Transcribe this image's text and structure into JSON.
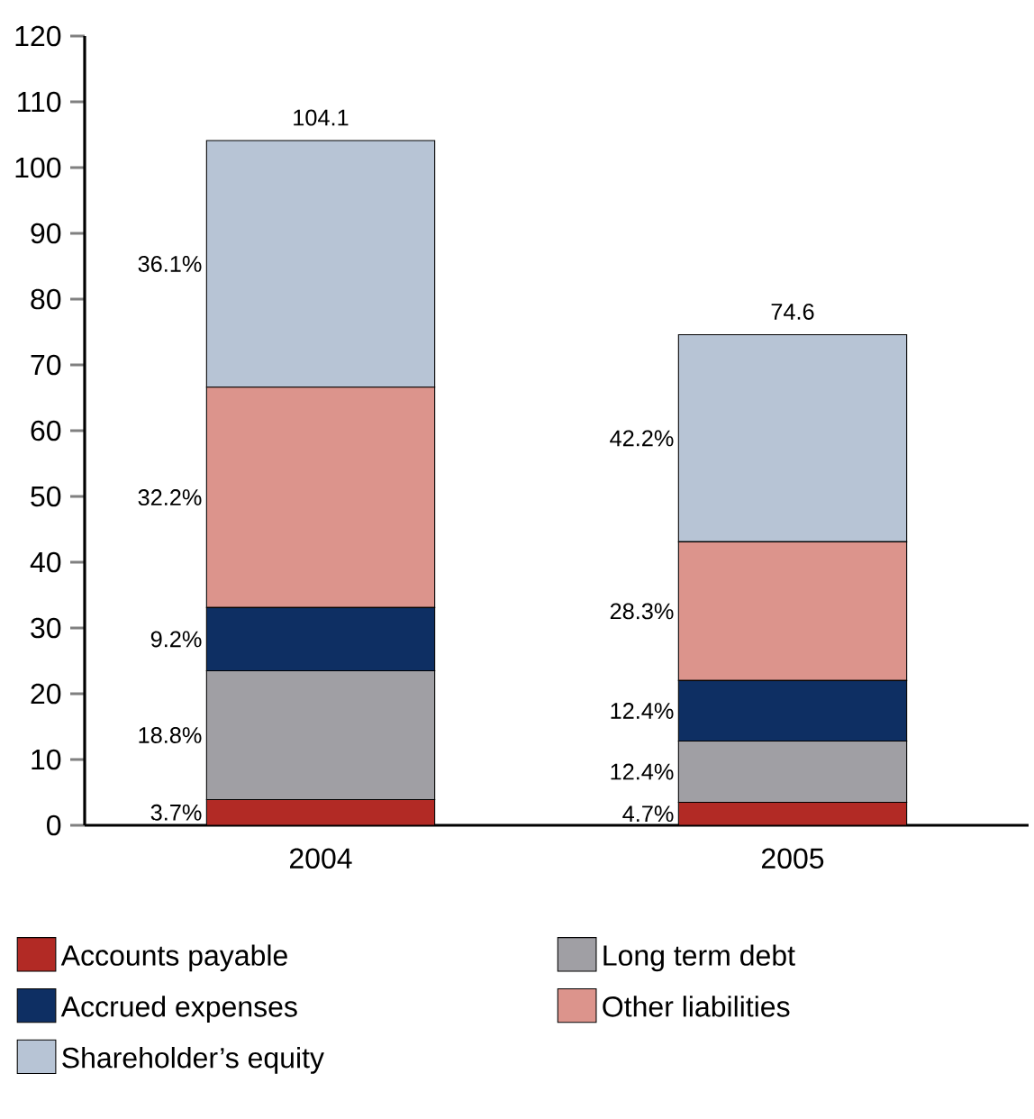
{
  "chart_data": {
    "type": "bar",
    "stacked": true,
    "categories": [
      "2004",
      "2005"
    ],
    "ylim": [
      0,
      120
    ],
    "yticks": [
      0,
      10,
      20,
      30,
      40,
      50,
      60,
      70,
      80,
      90,
      100,
      110,
      120
    ],
    "legend": "bottom",
    "grid": false,
    "totals": [
      "104.1",
      "74.6"
    ],
    "series": [
      {
        "name": "Accounts payable",
        "color": "#b22a25",
        "values": [
          3.9,
          3.5
        ]
      },
      {
        "name": "Long term debt",
        "color": "#a09fa4",
        "values": [
          19.6,
          9.3
        ]
      },
      {
        "name": "Accrued expenses",
        "color": "#0e2f63",
        "values": [
          9.6,
          9.2
        ]
      },
      {
        "name": "Other liabilities",
        "color": "#dc948c",
        "values": [
          33.5,
          21.1
        ]
      },
      {
        "name": "Shareholder’s equity",
        "color": "#b7c4d5",
        "values": [
          37.5,
          31.5
        ]
      }
    ],
    "annotations": [
      "3.7%",
      "18.8%",
      "9.2%",
      "32.2%",
      "36.1%",
      "4.7%",
      "12.4%",
      "12.4%",
      "28.3%",
      "42.2%"
    ]
  }
}
